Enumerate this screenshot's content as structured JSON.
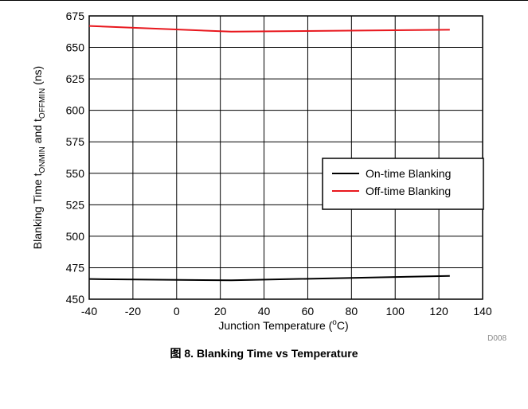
{
  "chart_data": {
    "type": "line",
    "xlabel": {
      "text": "Junction Temperature (",
      "sup": "o",
      "tail": "C)"
    },
    "ylabel": {
      "parts": [
        {
          "text": "Blanking Time t"
        },
        {
          "text": "ONMIN",
          "sub": true
        },
        {
          "text": " and t"
        },
        {
          "text": "OFFMIN",
          "sub": true
        },
        {
          "text": " (ns)"
        }
      ]
    },
    "xlim": [
      -40,
      140
    ],
    "ylim": [
      450,
      675
    ],
    "xticks": [
      -40,
      -20,
      0,
      20,
      40,
      60,
      80,
      100,
      120,
      140
    ],
    "yticks": [
      450,
      475,
      500,
      525,
      550,
      575,
      600,
      625,
      650,
      675
    ],
    "grid": true,
    "legend_position": "center-right",
    "series": [
      {
        "name": "On-time Blanking",
        "color": "#000000",
        "x": [
          -40,
          25,
          125
        ],
        "y": [
          466,
          465,
          468.5
        ]
      },
      {
        "name": "Off-time Blanking",
        "color": "#e8171d",
        "x": [
          -40,
          25,
          125
        ],
        "y": [
          667,
          662.5,
          664
        ]
      }
    ],
    "note": "D008"
  },
  "caption": "图 8. Blanking Time vs Temperature"
}
